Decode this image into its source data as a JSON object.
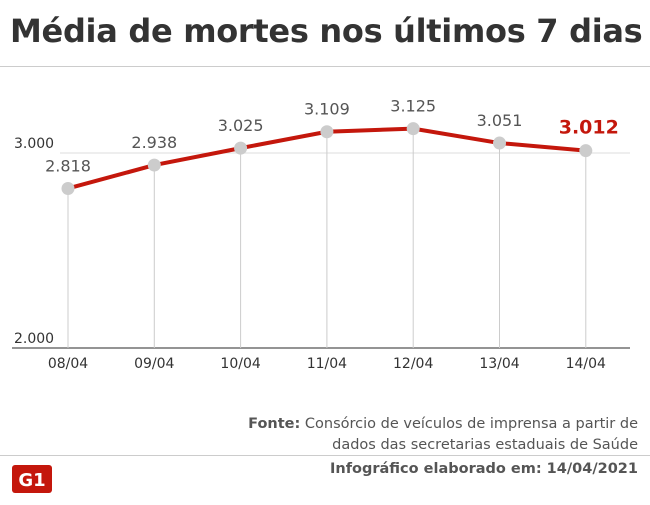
{
  "title": "Média de mortes nos últimos 7 dias",
  "source_label": "Fonte:",
  "source_text": "Consórcio de veículos de imprensa a partir de dados das secretarias estaduais de Saúde",
  "credit": "Infográfico elaborado em: 14/04/2021",
  "logo_text": "G1",
  "colors": {
    "line": "#c4170c",
    "marker": "#cccccc",
    "highlight": "#c4170c",
    "logo": "#c4170c"
  },
  "chart_data": {
    "type": "line",
    "title": "Média de mortes nos últimos 7 dias",
    "categories": [
      "08/04",
      "09/04",
      "10/04",
      "11/04",
      "12/04",
      "13/04",
      "14/04"
    ],
    "values": [
      2818,
      2938,
      3025,
      3109,
      3125,
      3051,
      3012
    ],
    "value_labels": [
      "2.818",
      "2.938",
      "3.025",
      "3.109",
      "3.125",
      "3.051",
      "3.012"
    ],
    "ylim": [
      2000,
      3000
    ],
    "yticks": [
      2000,
      3000
    ],
    "ytick_labels": [
      "2.000",
      "3.000"
    ],
    "grid": "vertical drop lines and horizontal line at 3.000",
    "highlight_last": true
  }
}
